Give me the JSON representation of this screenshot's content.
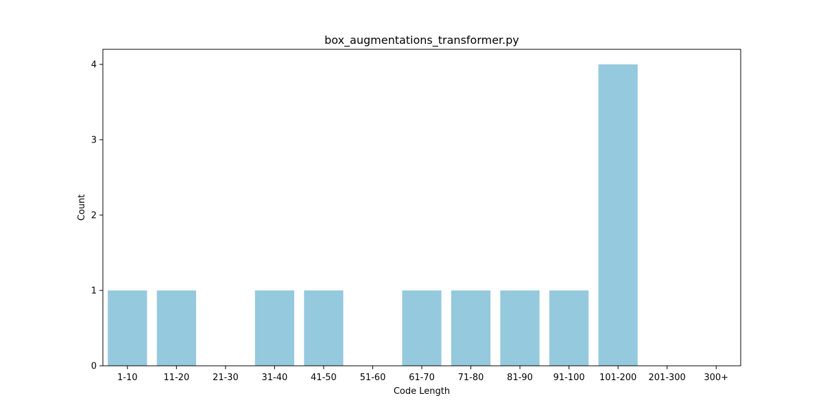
{
  "chart_data": {
    "type": "bar",
    "title": "box_augmentations_transformer.py",
    "xlabel": "Code Length",
    "ylabel": "Count",
    "categories": [
      "1-10",
      "11-20",
      "21-30",
      "31-40",
      "41-50",
      "51-60",
      "61-70",
      "71-80",
      "81-90",
      "91-100",
      "101-200",
      "201-300",
      "300+"
    ],
    "values": [
      1,
      1,
      0,
      1,
      1,
      0,
      1,
      1,
      1,
      1,
      4,
      0,
      0
    ],
    "ylim": [
      0,
      4.2
    ],
    "yticks": [
      0,
      1,
      2,
      3,
      4
    ],
    "grid": false,
    "legend": "none",
    "bar_color": "#95c9de"
  }
}
